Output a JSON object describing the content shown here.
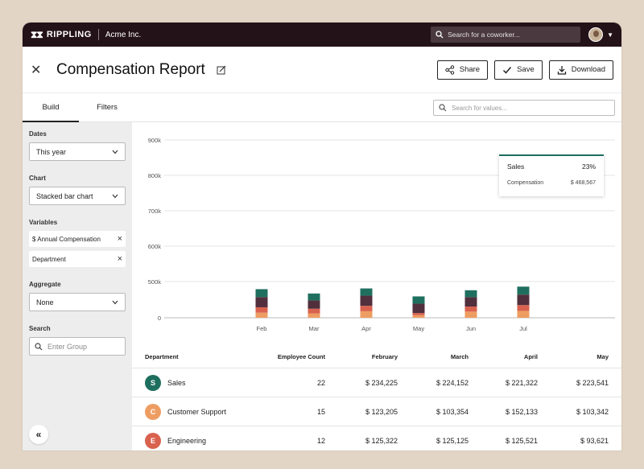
{
  "topbar": {
    "brand": "RIPPLING",
    "brand_mark": "⧗⧗",
    "company": "Acme Inc.",
    "search_placeholder": "Search for a coworker..."
  },
  "header": {
    "title": "Compensation Report",
    "share_label": "Share",
    "save_label": "Save",
    "download_label": "Download"
  },
  "tabs": [
    {
      "label": "Build"
    },
    {
      "label": "Filters"
    }
  ],
  "value_search_placeholder": "Search for values...",
  "sidebar": {
    "dates_label": "Dates",
    "dates_value": "This year",
    "chart_label": "Chart",
    "chart_value": "Stacked bar chart",
    "variables_label": "Variables",
    "variables": [
      "$ Annual Compensation",
      "Department"
    ],
    "aggregate_label": "Aggregate",
    "aggregate_value": "None",
    "search_label": "Search",
    "search_placeholder": "Enter Group",
    "collapse_glyph": "«"
  },
  "colors": {
    "sales": "#1f6f5f",
    "marketing": "#512f3c",
    "engineering": "#d9624e",
    "customer_support": "#ee9d62",
    "topbar": "#241219"
  },
  "chart_data": {
    "type": "bar",
    "stacked": true,
    "categories": [
      "Feb",
      "Mar",
      "Apr",
      "May",
      "Jun",
      "Jul"
    ],
    "y_ticks": [
      "900k",
      "800k",
      "700k",
      "600k",
      "500k",
      "0"
    ],
    "series": [
      {
        "key": "customer_support",
        "values": [
          70000,
          60000,
          90000,
          35000,
          85000,
          95000
        ]
      },
      {
        "key": "engineering",
        "values": [
          75000,
          65000,
          75000,
          30000,
          70000,
          80000
        ]
      },
      {
        "key": "marketing",
        "values": [
          140000,
          115000,
          140000,
          130000,
          130000,
          145000
        ]
      },
      {
        "key": "sales",
        "values": [
          110000,
          95000,
          100000,
          100000,
          95000,
          110000
        ]
      }
    ],
    "grid": true
  },
  "tooltip": {
    "name": "Sales",
    "pct": "23%",
    "metric": "Compensation",
    "value": "$ 468,567"
  },
  "table": {
    "headers": [
      "Department",
      "Employee Count",
      "February",
      "March",
      "April",
      "May"
    ],
    "rows": [
      {
        "initial": "S",
        "color": "#1f6f5f",
        "name": "Sales",
        "count": "22",
        "feb": "$ 234,225",
        "mar": "$ 224,152",
        "apr": "$ 221,322",
        "may": "$ 223,541"
      },
      {
        "initial": "C",
        "color": "#ee9d62",
        "name": "Customer Support",
        "count": "15",
        "feb": "$ 123,205",
        "mar": "$ 103,354",
        "apr": "$ 152,133",
        "may": "$ 103,342"
      },
      {
        "initial": "E",
        "color": "#d9624e",
        "name": "Engineering",
        "count": "12",
        "feb": "$ 125,322",
        "mar": "$ 125,125",
        "apr": "$ 125,521",
        "may": "$ 93,621"
      }
    ]
  }
}
